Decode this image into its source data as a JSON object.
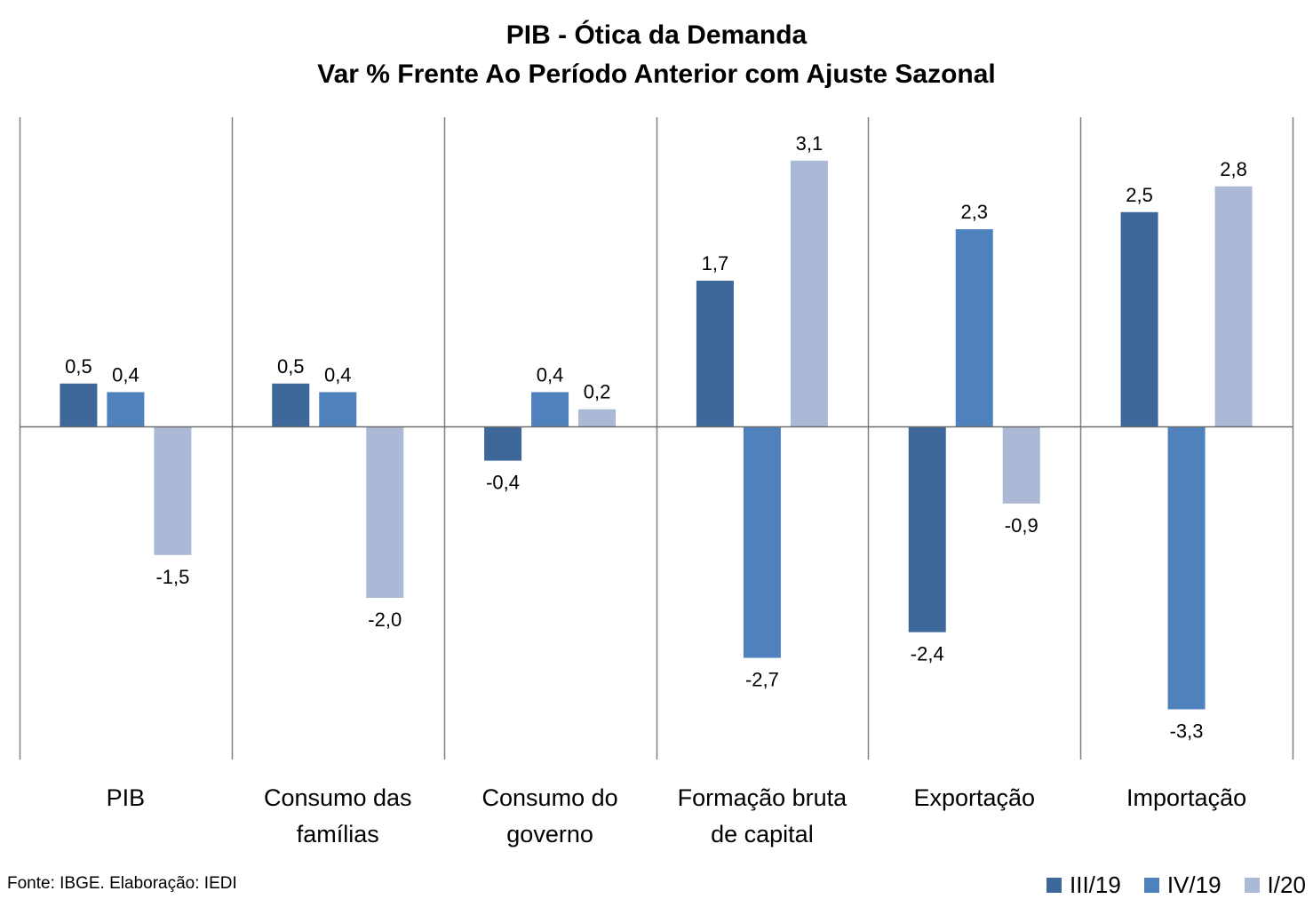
{
  "chart_data": {
    "type": "bar",
    "title": "PIB - Ótica da Demanda",
    "subtitle": "Var % Frente Ao Período Anterior com Ajuste Sazonal",
    "categories": [
      [
        "PIB"
      ],
      [
        "Consumo das",
        "famílias"
      ],
      [
        "Consumo do",
        "governo"
      ],
      [
        "Formação bruta",
        "de capital"
      ],
      [
        "Exportação"
      ],
      [
        "Importação"
      ]
    ],
    "series": [
      {
        "name": "III/19",
        "color": "#3E6899",
        "values": [
          0.5,
          0.5,
          -0.4,
          1.7,
          -2.4,
          2.5
        ],
        "labels": [
          "0,5",
          "0,5",
          "-0,4",
          "1,7",
          "-2,4",
          "2,5"
        ]
      },
      {
        "name": "IV/19",
        "color": "#4F81BD",
        "values": [
          0.4,
          0.4,
          0.4,
          -2.7,
          2.3,
          -3.3
        ],
        "labels": [
          "0,4",
          "0,4",
          "0,4",
          "-2,7",
          "2,3",
          "-3,3"
        ]
      },
      {
        "name": "I/20",
        "color": "#ABB9D6",
        "values": [
          -1.5,
          -2.0,
          0.2,
          3.1,
          -0.9,
          2.8
        ],
        "labels": [
          "-1,5",
          "-2,0",
          "0,2",
          "3,1",
          "-0,9",
          "2,8"
        ]
      }
    ],
    "legend": "bottom-right",
    "grid": false
  },
  "source": "Fonte: IBGE. Elaboração: IEDI"
}
